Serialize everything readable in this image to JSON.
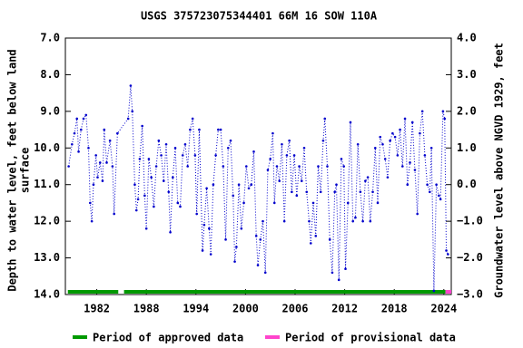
{
  "chart_data": {
    "type": "line",
    "title": "USGS 375723075344401 66M 16 SOW 110A",
    "ylabel": [
      "Depth to water level, feet below land",
      "surface"
    ],
    "y2label": "Groundwater level above NGVD 1929, feet",
    "xlim": [
      1978.2,
      2024.9
    ],
    "xticks": [
      1982,
      1988,
      1994,
      2000,
      2006,
      2012,
      2018,
      2024
    ],
    "ylim": [
      7,
      14
    ],
    "yticks": [
      {
        "value": 7,
        "label": "7.0"
      },
      {
        "value": 8,
        "label": "8.0"
      },
      {
        "value": 9,
        "label": "9.0"
      },
      {
        "value": 10,
        "label": "10.0"
      },
      {
        "value": 11,
        "label": "11.0"
      },
      {
        "value": 12,
        "label": "12.0"
      },
      {
        "value": 13,
        "label": "13.0"
      },
      {
        "value": 14,
        "label": "14.0"
      }
    ],
    "y2lim": [
      4,
      -3
    ],
    "y2ticks": [
      {
        "value": 4,
        "label": "4.0"
      },
      {
        "value": 3,
        "label": "3.0"
      },
      {
        "value": 2,
        "label": "2.0"
      },
      {
        "value": 1,
        "label": "1.0"
      },
      {
        "value": 0,
        "label": "0.0"
      },
      {
        "value": -1,
        "label": "−1.0"
      },
      {
        "value": -2,
        "label": "−2.0"
      },
      {
        "value": -3,
        "label": "−3.0"
      }
    ],
    "x": [
      1978.6,
      1979.0,
      1979.3,
      1979.6,
      1979.8,
      1980.1,
      1980.4,
      1980.7,
      1981.0,
      1981.2,
      1981.4,
      1981.6,
      1981.9,
      1982.1,
      1982.4,
      1982.7,
      1982.9,
      1983.2,
      1983.6,
      1983.9,
      1984.1,
      1984.5,
      1985.8,
      1986.1,
      1986.3,
      1986.6,
      1986.8,
      1987.0,
      1987.2,
      1987.5,
      1987.8,
      1988.0,
      1988.3,
      1988.6,
      1988.9,
      1989.2,
      1989.5,
      1989.8,
      1990.1,
      1990.4,
      1990.7,
      1990.9,
      1991.2,
      1991.5,
      1991.8,
      1992.1,
      1992.4,
      1992.7,
      1993.0,
      1993.3,
      1993.6,
      1993.9,
      1994.1,
      1994.4,
      1994.8,
      1995.0,
      1995.3,
      1995.6,
      1995.8,
      1996.1,
      1996.4,
      1996.7,
      1997.0,
      1997.3,
      1997.6,
      1997.9,
      1998.2,
      1998.5,
      1998.7,
      1998.9,
      1999.2,
      1999.5,
      1999.8,
      2000.1,
      2000.4,
      2000.7,
      2001.0,
      2001.3,
      2001.5,
      2001.8,
      2002.1,
      2002.4,
      2002.7,
      2003.0,
      2003.3,
      2003.5,
      2003.8,
      2004.1,
      2004.4,
      2004.7,
      2005.0,
      2005.3,
      2005.6,
      2005.9,
      2006.2,
      2006.5,
      2006.8,
      2007.1,
      2007.4,
      2007.7,
      2007.9,
      2008.2,
      2008.5,
      2008.8,
      2009.1,
      2009.4,
      2009.6,
      2009.9,
      2010.2,
      2010.5,
      2010.8,
      2011.0,
      2011.3,
      2011.6,
      2011.9,
      2012.1,
      2012.4,
      2012.7,
      2013.0,
      2013.3,
      2013.6,
      2013.9,
      2014.2,
      2014.5,
      2014.8,
      2015.1,
      2015.4,
      2015.7,
      2016.0,
      2016.3,
      2016.6,
      2016.9,
      2017.2,
      2017.5,
      2017.8,
      2018.1,
      2018.4,
      2018.7,
      2019.0,
      2019.3,
      2019.6,
      2019.9,
      2020.2,
      2020.5,
      2020.8,
      2021.1,
      2021.4,
      2021.7,
      2022.0,
      2022.3,
      2022.5,
      2022.8,
      2023.1,
      2023.4,
      2023.6,
      2023.9,
      2024.1,
      2024.3,
      2024.5
    ],
    "series": [
      {
        "color": "#0000cc",
        "values": [
          10.5,
          9.9,
          9.6,
          9.2,
          10.1,
          9.5,
          9.2,
          9.1,
          10.0,
          11.5,
          12.0,
          11.0,
          10.2,
          10.8,
          10.4,
          10.9,
          9.5,
          10.4,
          9.8,
          10.5,
          11.8,
          9.6,
          9.2,
          8.3,
          9.0,
          11.0,
          11.7,
          11.4,
          10.3,
          9.4,
          11.3,
          12.2,
          10.3,
          10.8,
          11.6,
          10.5,
          9.8,
          10.2,
          10.9,
          9.9,
          11.2,
          12.3,
          10.8,
          10.0,
          11.5,
          11.6,
          10.2,
          9.9,
          10.5,
          9.5,
          9.2,
          10.2,
          11.8,
          9.5,
          12.8,
          12.1,
          11.1,
          12.2,
          12.9,
          11.0,
          10.2,
          9.5,
          9.5,
          10.5,
          12.5,
          10.0,
          9.8,
          11.3,
          13.1,
          12.7,
          11.0,
          12.2,
          11.5,
          10.5,
          11.1,
          11.0,
          10.1,
          12.4,
          13.2,
          12.5,
          12.0,
          13.4,
          10.6,
          10.3,
          9.6,
          11.5,
          10.5,
          10.9,
          9.9,
          12.0,
          10.2,
          9.8,
          11.2,
          10.2,
          11.3,
          10.5,
          10.9,
          10.0,
          11.2,
          12.0,
          12.6,
          11.5,
          12.4,
          10.5,
          11.2,
          9.8,
          9.2,
          10.5,
          12.5,
          13.4,
          11.2,
          11.0,
          13.6,
          10.3,
          10.5,
          13.3,
          11.5,
          9.3,
          12.0,
          11.9,
          9.9,
          11.2,
          12.0,
          10.9,
          10.8,
          12.0,
          11.2,
          10.0,
          11.5,
          9.7,
          9.9,
          10.3,
          10.8,
          9.8,
          9.6,
          9.7,
          10.2,
          9.5,
          10.5,
          9.2,
          11.0,
          10.4,
          9.3,
          10.6,
          11.8,
          9.6,
          9.0,
          10.2,
          11.0,
          11.2,
          10.0,
          13.9,
          11.0,
          11.3,
          11.4,
          9.0,
          9.2,
          12.8,
          12.9
        ]
      }
    ],
    "periods": [
      {
        "name": "Period of approved data",
        "color": "#009900",
        "ranges": [
          [
            1978.5,
            1984.6
          ],
          [
            1985.3,
            2024.2
          ]
        ]
      },
      {
        "name": "Period of provisional data",
        "color": "#ff44cc",
        "ranges": [
          [
            2024.2,
            2024.9
          ]
        ]
      }
    ]
  }
}
